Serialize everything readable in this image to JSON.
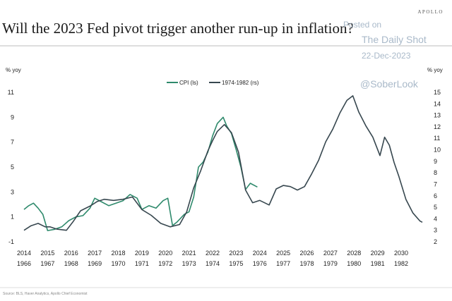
{
  "header": {
    "title": "Will the 2023 Fed pivot trigger another run-up in inflation?",
    "brand": "APOLLO"
  },
  "watermark": {
    "posted": "Posted on",
    "site": "The Daily Shot",
    "date": "22-Dec-2023",
    "handle": "@SoberLook"
  },
  "colors": {
    "cpi": "#2f8a6c",
    "hist": "#37474f"
  },
  "chart_data": {
    "type": "line",
    "title": "Will the 2023 Fed pivot trigger another run-up in inflation?",
    "y_left": {
      "label": "% yoy",
      "ticks": [
        11,
        9,
        7,
        5,
        3,
        1,
        -1
      ],
      "range": [
        -1,
        11
      ]
    },
    "y_right": {
      "label": "% yoy",
      "ticks": [
        15,
        14,
        13,
        12,
        11,
        10,
        9,
        8,
        7,
        6,
        5,
        4,
        3,
        2
      ],
      "range": [
        2,
        15
      ]
    },
    "x_top_labels": [
      "2014",
      "2015",
      "2016",
      "2017",
      "2018",
      "2019",
      "2020",
      "2021",
      "2022",
      "2023",
      "2024",
      "2025",
      "2026",
      "2027",
      "2028",
      "2029",
      "2030"
    ],
    "x_bottom_labels": [
      "1966",
      "1967",
      "1968",
      "1969",
      "1970",
      "1971",
      "1972",
      "1973",
      "1974",
      "1975",
      "1976",
      "1977",
      "1978",
      "1979",
      "1980",
      "1981",
      "1982"
    ],
    "legend": {
      "placement": "top-center"
    },
    "series": [
      {
        "name": "CPI (ls)",
        "axis": "left",
        "x": [
          2014.0,
          2014.2,
          2014.4,
          2014.6,
          2014.8,
          2015.0,
          2015.3,
          2015.6,
          2015.9,
          2016.2,
          2016.5,
          2016.8,
          2017.0,
          2017.3,
          2017.6,
          2017.9,
          2018.2,
          2018.5,
          2018.8,
          2019.0,
          2019.3,
          2019.6,
          2019.9,
          2020.1,
          2020.3,
          2020.5,
          2020.8,
          2021.0,
          2021.2,
          2021.4,
          2021.6,
          2021.8,
          2022.0,
          2022.2,
          2022.45,
          2022.6,
          2022.8,
          2023.0,
          2023.2,
          2023.4,
          2023.6,
          2023.9
        ],
        "values": [
          1.6,
          1.9,
          2.1,
          1.7,
          1.2,
          -0.1,
          0.0,
          0.2,
          0.7,
          1.0,
          1.1,
          1.7,
          2.5,
          2.2,
          1.9,
          2.1,
          2.3,
          2.8,
          2.5,
          1.6,
          1.9,
          1.7,
          2.3,
          2.5,
          0.3,
          0.6,
          1.2,
          1.4,
          2.6,
          5.0,
          5.4,
          6.2,
          7.5,
          8.5,
          9.0,
          8.3,
          7.7,
          6.4,
          5.0,
          3.2,
          3.7,
          3.4
        ]
      },
      {
        "name": "1974-1982 (rs)",
        "axis": "right",
        "x": [
          2014.0,
          2014.3,
          2014.6,
          2014.9,
          2015.1,
          2015.4,
          2015.8,
          2016.1,
          2016.4,
          2016.8,
          2017.1,
          2017.4,
          2017.8,
          2018.2,
          2018.6,
          2019.0,
          2019.4,
          2019.8,
          2020.2,
          2020.6,
          2020.9,
          2021.2,
          2021.5,
          2021.8,
          2022.0,
          2022.2,
          2022.5,
          2022.8,
          2023.1,
          2023.4,
          2023.7,
          2024.0,
          2024.4,
          2024.7,
          2025.0,
          2025.3,
          2025.6,
          2025.9,
          2026.2,
          2026.5,
          2026.8,
          2027.1,
          2027.4,
          2027.7,
          2027.95,
          2028.2,
          2028.5,
          2028.8,
          2029.1,
          2029.3,
          2029.5,
          2029.7,
          2029.9,
          2030.2,
          2030.5,
          2030.8,
          2030.9
        ],
        "values": [
          3.0,
          3.4,
          3.6,
          3.3,
          3.3,
          3.1,
          3.0,
          3.8,
          4.7,
          5.1,
          5.5,
          5.7,
          5.6,
          5.7,
          5.9,
          4.8,
          4.3,
          3.6,
          3.3,
          3.5,
          4.6,
          6.7,
          8.2,
          9.9,
          10.8,
          11.6,
          12.2,
          11.5,
          9.8,
          6.5,
          5.4,
          5.6,
          5.2,
          6.6,
          6.9,
          6.8,
          6.5,
          6.8,
          7.9,
          9.1,
          10.7,
          11.8,
          13.2,
          14.3,
          14.7,
          13.3,
          12.1,
          11.1,
          9.5,
          11.1,
          10.4,
          8.9,
          7.7,
          5.7,
          4.5,
          3.8,
          3.7
        ]
      }
    ]
  },
  "source": "Source: BLS, Haver Analytics, Apollo Chief Economist"
}
